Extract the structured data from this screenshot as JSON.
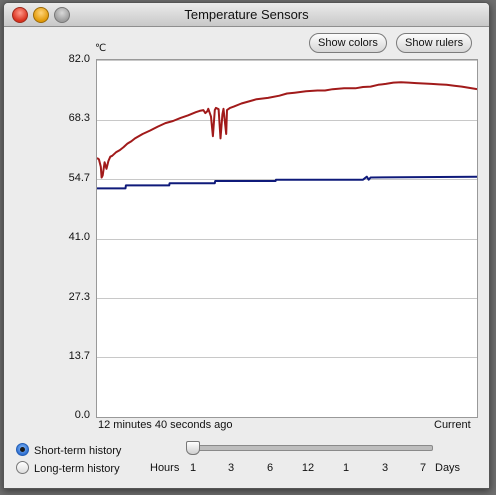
{
  "window": {
    "title": "Temperature Sensors"
  },
  "toolbar": {
    "show_colors": "Show colors",
    "show_rulers": "Show rulers"
  },
  "chart": {
    "unit": "℃",
    "y_ticks": [
      "82.0",
      "68.3",
      "54.7",
      "41.0",
      "27.3",
      "13.7",
      "0.0"
    ],
    "x_left": "12 minutes 40 seconds ago",
    "x_right": "Current"
  },
  "history": {
    "short_term": "Short-term history",
    "long_term": "Long-term history",
    "selected": "short_term"
  },
  "scale": {
    "hours_label": "Hours",
    "days_label": "Days",
    "ticks": [
      "1",
      "3",
      "6",
      "12",
      "1",
      "3",
      "7"
    ],
    "slider_position": 0
  },
  "chart_data": {
    "type": "line",
    "ylim": [
      0,
      82
    ],
    "grid": true,
    "series": [
      {
        "color": "#a11a1a",
        "x": [
          0.0,
          0.5,
          1.0,
          1.2,
          1.5,
          2.0,
          2.5,
          3.0,
          3.5,
          4.0,
          5.0,
          6.0,
          7.0,
          8.0,
          9.0,
          10.0,
          12.0,
          14.0,
          16.0,
          18.0,
          20.0,
          22.0,
          24.0,
          26.0,
          27.0,
          28.0,
          28.5,
          29.0,
          29.3,
          30.0,
          30.5,
          31.0,
          31.3,
          32.0,
          32.5,
          33.0,
          33.3,
          34.0,
          34.2,
          35.0,
          36.0,
          38.0,
          40.0,
          42.0,
          45.0,
          48.0,
          50.0,
          52.0,
          55.0,
          58.0,
          60.0,
          62.0,
          65.0,
          68.0,
          70.0,
          72.0,
          74.0,
          76.0,
          78.0,
          80.0,
          82.0,
          84.0,
          86.0,
          88.0,
          90.0,
          92.0,
          94.0,
          96.0,
          98.0,
          100.0
        ],
        "values": [
          59.5,
          59.2,
          57.5,
          55.0,
          55.5,
          58.5,
          57.0,
          58.8,
          59.8,
          60.0,
          60.8,
          61.3,
          62.0,
          62.8,
          63.3,
          64.0,
          65.0,
          65.8,
          66.7,
          67.5,
          68.0,
          68.7,
          69.3,
          70.0,
          70.3,
          70.5,
          69.8,
          70.2,
          70.8,
          69.0,
          64.5,
          70.5,
          71.0,
          70.7,
          64.0,
          69.5,
          70.8,
          65.0,
          70.5,
          71.0,
          71.3,
          72.0,
          72.5,
          73.0,
          73.3,
          73.8,
          74.3,
          74.5,
          74.8,
          75.0,
          75.0,
          75.3,
          75.5,
          75.5,
          75.8,
          75.9,
          76.3,
          76.5,
          76.8,
          76.9,
          76.8,
          76.7,
          76.6,
          76.5,
          76.4,
          76.3,
          76.1,
          75.9,
          75.6,
          75.3
        ]
      },
      {
        "color": "#0f1a7a",
        "x": [
          0.0,
          7.5,
          7.6,
          19.0,
          19.1,
          31.0,
          31.1,
          47.0,
          47.1,
          70.0,
          71.0,
          71.5,
          72.0,
          100.0
        ],
        "values": [
          52.5,
          52.5,
          53.2,
          53.2,
          53.7,
          53.7,
          54.2,
          54.2,
          54.5,
          54.5,
          55.2,
          54.5,
          55.0,
          55.2
        ]
      }
    ]
  }
}
